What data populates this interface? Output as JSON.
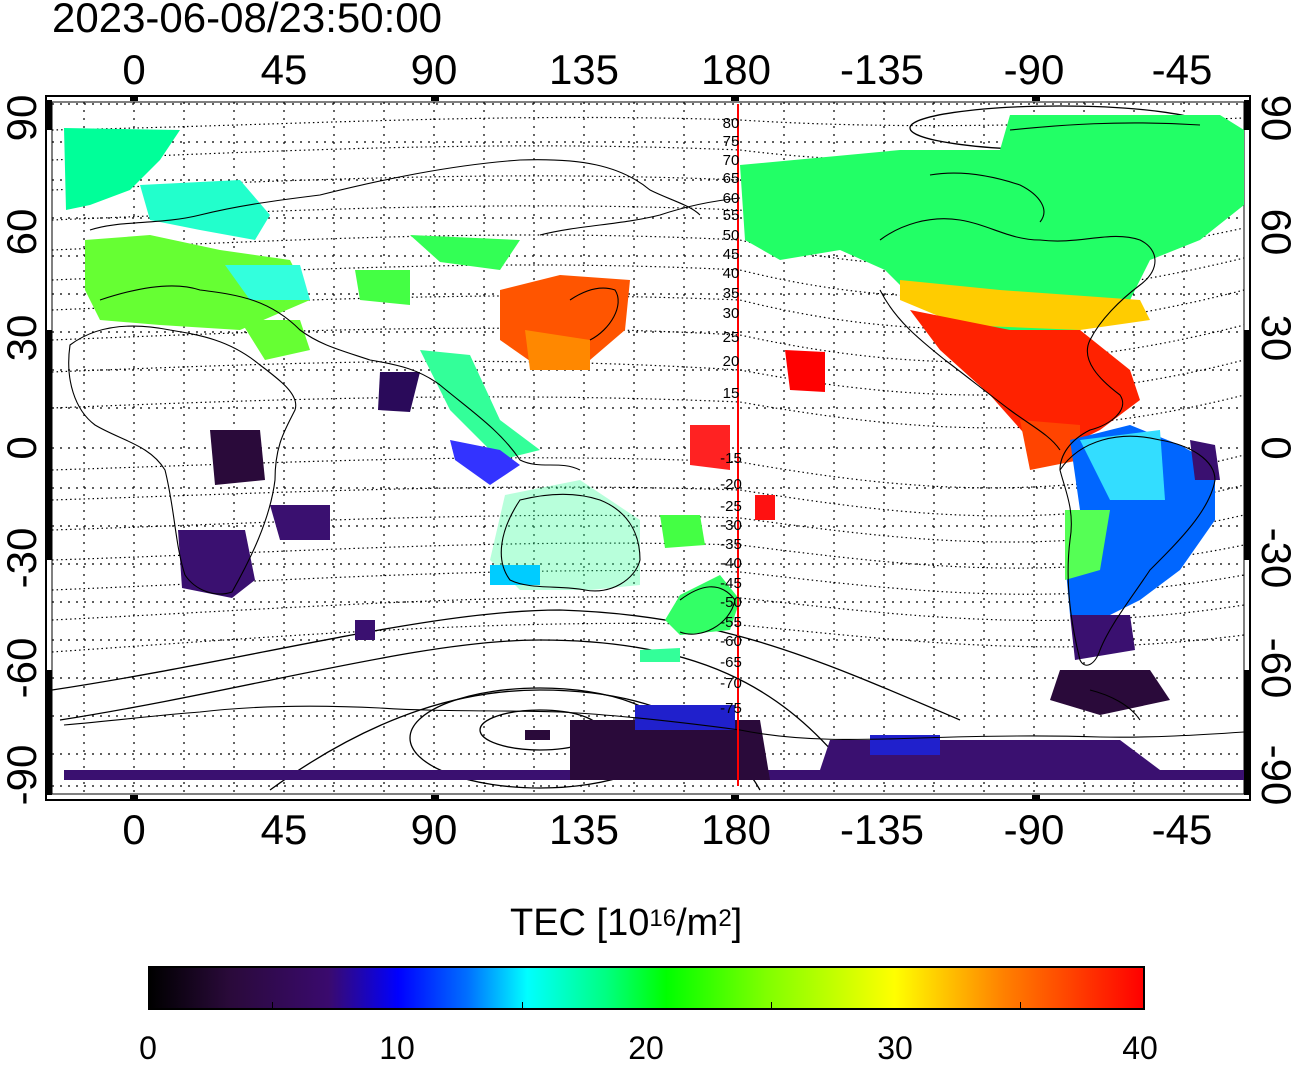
{
  "header": {
    "timestamp": "2023-06-08/23:50:00"
  },
  "map": {
    "top_lon_labels": [
      "0",
      "45",
      "90",
      "135",
      "180",
      "-135",
      "-90",
      "-45"
    ],
    "bottom_lon_labels": [
      "0",
      "45",
      "90",
      "135",
      "180",
      "-135",
      "-90",
      "-45"
    ],
    "left_lat_labels": [
      "90",
      "60",
      "30",
      "0",
      "-30",
      "-60",
      "-90"
    ],
    "right_lat_labels": [
      "90",
      "60",
      "30",
      "0",
      "-30",
      "-60",
      "-90"
    ],
    "magnetic_lat_labels": [
      "80",
      "75",
      "70",
      "65",
      "60",
      "55",
      "50",
      "45",
      "40",
      "35",
      "30",
      "25",
      "20",
      "15",
      "-15",
      "-20",
      "-25",
      "-30",
      "-35",
      "-40",
      "-45",
      "-50",
      "-55",
      "-60",
      "-65",
      "-70",
      "-75"
    ],
    "meridian_line_color": "#ff0000"
  },
  "colorbar": {
    "title_text": "TEC  [10",
    "title_exp": "16",
    "title_mid": "/m",
    "title_exp2": "2",
    "title_end": "]",
    "tick_labels": [
      "0",
      "10",
      "20",
      "30",
      "40"
    ],
    "min": 0,
    "max": 40,
    "colormap": [
      "#000000",
      "#3a0a6e",
      "#0000ff",
      "#00ffff",
      "#00ff00",
      "#ffff00",
      "#ff0000"
    ]
  }
}
